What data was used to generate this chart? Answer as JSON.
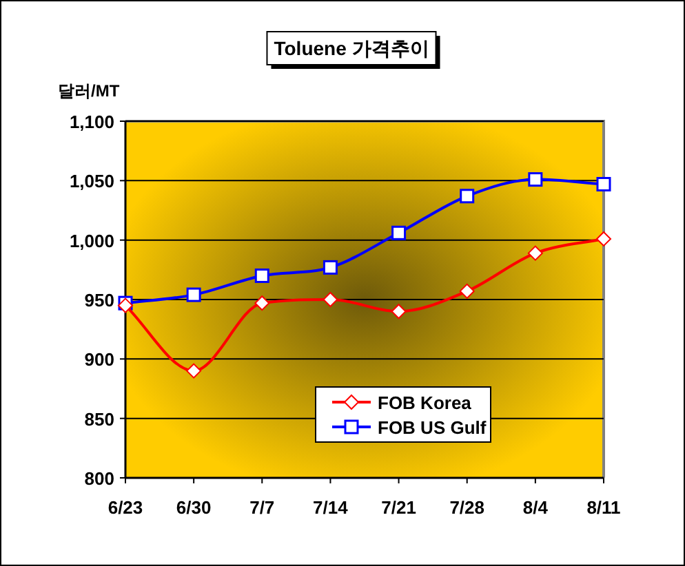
{
  "chart_data": {
    "type": "line",
    "title": "Toluene 가격추이",
    "ylabel": "달러/MT",
    "categories": [
      "6/23",
      "6/30",
      "7/7",
      "7/14",
      "7/21",
      "7/28",
      "8/4",
      "8/11"
    ],
    "series": [
      {
        "name": "FOB Korea",
        "color": "#ff0000",
        "marker": "diamond",
        "values": [
          945,
          890,
          947,
          950,
          940,
          957,
          989,
          1001
        ]
      },
      {
        "name": "FOB US Gulf",
        "color": "#0000ff",
        "marker": "square",
        "values": [
          947,
          954,
          970,
          977,
          1006,
          1037,
          1051,
          1047
        ]
      }
    ],
    "ylim": [
      800,
      1100
    ],
    "yticks": [
      800,
      850,
      900,
      950,
      {
        "value": 1000,
        "label": "1,000"
      },
      {
        "value": 1050,
        "label": "1,050"
      },
      {
        "value": 1100,
        "label": "1,100"
      }
    ],
    "grid": "y",
    "legend": "bottom",
    "line_style": "solid"
  }
}
